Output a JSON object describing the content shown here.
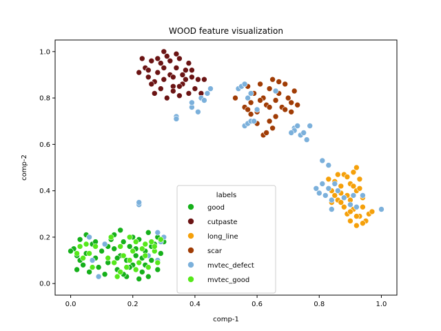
{
  "chart_data": {
    "type": "scatter",
    "title": "WOOD feature visualization",
    "xlabel": "comp-1",
    "ylabel": "comp-2",
    "xlim": [
      -0.05,
      1.05
    ],
    "ylim": [
      -0.05,
      1.05
    ],
    "xticks": [
      "0.0",
      "0.2",
      "0.4",
      "0.6",
      "0.8",
      "1.0"
    ],
    "yticks": [
      "0.0",
      "0.2",
      "0.4",
      "0.6",
      "0.8",
      "1.0"
    ],
    "grid": false,
    "legend": {
      "title": "labels",
      "placement": "lower-center"
    },
    "series": [
      {
        "name": "good",
        "color": "#15b01a",
        "points": [
          [
            0.01,
            0.15
          ],
          [
            0.02,
            0.12
          ],
          [
            0.03,
            0.1
          ],
          [
            0.04,
            0.08
          ],
          [
            0.05,
            0.13
          ],
          [
            0.06,
            0.05
          ],
          [
            0.07,
            0.17
          ],
          [
            0.08,
            0.11
          ],
          [
            0.09,
            0.07
          ],
          [
            0.1,
            0.14
          ],
          [
            0.12,
            0.09
          ],
          [
            0.13,
            0.19
          ],
          [
            0.14,
            0.21
          ],
          [
            0.15,
            0.06
          ],
          [
            0.16,
            0.12
          ],
          [
            0.17,
            0.18
          ],
          [
            0.18,
            0.03
          ],
          [
            0.19,
            0.16
          ],
          [
            0.2,
            0.08
          ],
          [
            0.21,
            0.12
          ],
          [
            0.22,
            0.19
          ],
          [
            0.23,
            0.05
          ],
          [
            0.24,
            0.14
          ],
          [
            0.25,
            0.22
          ],
          [
            0.26,
            0.1
          ],
          [
            0.27,
            0.17
          ],
          [
            0.28,
            0.06
          ],
          [
            0.29,
            0.13
          ],
          [
            0.3,
            0.18
          ],
          [
            0.03,
            0.19
          ],
          [
            0.05,
            0.21
          ],
          [
            0.11,
            0.04
          ],
          [
            0.14,
            0.15
          ],
          [
            0.16,
            0.23
          ],
          [
            0.18,
            0.1
          ],
          [
            0.2,
            0.2
          ],
          [
            0.22,
            0.02
          ],
          [
            0.24,
            0.08
          ],
          [
            0.26,
            0.16
          ],
          [
            0.28,
            0.2
          ],
          [
            0.0,
            0.14
          ],
          [
            0.02,
            0.06
          ],
          [
            0.08,
            0.18
          ],
          [
            0.12,
            0.16
          ],
          [
            0.15,
            0.11
          ],
          [
            0.17,
            0.04
          ],
          [
            0.19,
            0.07
          ],
          [
            0.21,
            0.15
          ],
          [
            0.23,
            0.11
          ],
          [
            0.25,
            0.03
          ]
        ]
      },
      {
        "name": "cutpaste",
        "color": "#6b1414",
        "points": [
          [
            0.24,
            0.93
          ],
          [
            0.25,
            0.89
          ],
          [
            0.26,
            0.96
          ],
          [
            0.27,
            0.87
          ],
          [
            0.28,
            0.91
          ],
          [
            0.29,
            0.95
          ],
          [
            0.3,
            0.88
          ],
          [
            0.31,
            0.98
          ],
          [
            0.32,
            0.9
          ],
          [
            0.33,
            0.85
          ],
          [
            0.34,
            0.93
          ],
          [
            0.35,
            0.97
          ],
          [
            0.36,
            0.86
          ],
          [
            0.37,
            0.92
          ],
          [
            0.38,
            0.95
          ],
          [
            0.39,
            0.89
          ],
          [
            0.4,
            0.84
          ],
          [
            0.41,
            0.88
          ],
          [
            0.27,
            0.82
          ],
          [
            0.29,
            0.84
          ],
          [
            0.31,
            0.8
          ],
          [
            0.33,
            0.83
          ],
          [
            0.35,
            0.81
          ],
          [
            0.36,
            0.9
          ],
          [
            0.26,
            0.86
          ],
          [
            0.3,
            0.93
          ],
          [
            0.32,
            0.96
          ],
          [
            0.34,
            0.99
          ],
          [
            0.37,
            0.88
          ],
          [
            0.39,
            0.92
          ],
          [
            0.23,
            0.97
          ],
          [
            0.25,
            0.92
          ],
          [
            0.28,
            0.97
          ],
          [
            0.3,
            1.0
          ],
          [
            0.33,
            0.89
          ],
          [
            0.35,
            0.85
          ],
          [
            0.38,
            0.82
          ],
          [
            0.42,
            0.82
          ],
          [
            0.43,
            0.88
          ],
          [
            0.22,
            0.91
          ]
        ]
      },
      {
        "name": "long_line",
        "color": "#f5a00a",
        "points": [
          [
            0.84,
            0.4
          ],
          [
            0.85,
            0.44
          ],
          [
            0.86,
            0.36
          ],
          [
            0.87,
            0.42
          ],
          [
            0.88,
            0.47
          ],
          [
            0.89,
            0.38
          ],
          [
            0.9,
            0.43
          ],
          [
            0.91,
            0.48
          ],
          [
            0.92,
            0.4
          ],
          [
            0.93,
            0.45
          ],
          [
            0.94,
            0.37
          ],
          [
            0.86,
            0.47
          ],
          [
            0.88,
            0.33
          ],
          [
            0.9,
            0.36
          ],
          [
            0.92,
            0.5
          ],
          [
            0.84,
            0.35
          ],
          [
            0.87,
            0.39
          ],
          [
            0.89,
            0.46
          ],
          [
            0.91,
            0.42
          ],
          [
            0.93,
            0.41
          ],
          [
            0.89,
            0.3
          ],
          [
            0.9,
            0.27
          ],
          [
            0.91,
            0.32
          ],
          [
            0.92,
            0.25
          ],
          [
            0.93,
            0.29
          ],
          [
            0.94,
            0.33
          ],
          [
            0.95,
            0.27
          ],
          [
            0.96,
            0.3
          ],
          [
            0.97,
            0.31
          ],
          [
            0.92,
            0.29
          ],
          [
            0.94,
            0.26
          ],
          [
            0.9,
            0.31
          ],
          [
            0.83,
            0.45
          ],
          [
            0.85,
            0.38
          ],
          [
            0.87,
            0.35
          ]
        ]
      },
      {
        "name": "scar",
        "color": "#a03c05",
        "points": [
          [
            0.53,
            0.8
          ],
          [
            0.56,
            0.76
          ],
          [
            0.57,
            0.85
          ],
          [
            0.58,
            0.78
          ],
          [
            0.59,
            0.82
          ],
          [
            0.6,
            0.74
          ],
          [
            0.61,
            0.86
          ],
          [
            0.62,
            0.8
          ],
          [
            0.63,
            0.77
          ],
          [
            0.64,
            0.84
          ],
          [
            0.65,
            0.88
          ],
          [
            0.66,
            0.79
          ],
          [
            0.67,
            0.82
          ],
          [
            0.68,
            0.76
          ],
          [
            0.69,
            0.86
          ],
          [
            0.7,
            0.8
          ],
          [
            0.71,
            0.78
          ],
          [
            0.72,
            0.83
          ],
          [
            0.73,
            0.77
          ],
          [
            0.62,
            0.64
          ],
          [
            0.63,
            0.65
          ],
          [
            0.64,
            0.7
          ],
          [
            0.65,
            0.67
          ],
          [
            0.66,
            0.72
          ],
          [
            0.6,
            0.69
          ],
          [
            0.58,
            0.73
          ],
          [
            0.67,
            0.87
          ],
          [
            0.69,
            0.75
          ],
          [
            0.71,
            0.74
          ],
          [
            0.57,
            0.75
          ],
          [
            0.61,
            0.79
          ],
          [
            0.64,
            0.76
          ]
        ]
      },
      {
        "name": "mvtec_defect",
        "color": "#7bb0db",
        "points": [
          [
            0.34,
            0.72
          ],
          [
            0.34,
            0.71
          ],
          [
            0.39,
            0.76
          ],
          [
            0.39,
            0.78
          ],
          [
            0.41,
            0.74
          ],
          [
            0.42,
            0.8
          ],
          [
            0.43,
            0.79
          ],
          [
            0.44,
            0.82
          ],
          [
            0.45,
            0.84
          ],
          [
            0.54,
            0.84
          ],
          [
            0.55,
            0.85
          ],
          [
            0.56,
            0.86
          ],
          [
            0.57,
            0.8
          ],
          [
            0.58,
            0.82
          ],
          [
            0.56,
            0.68
          ],
          [
            0.57,
            0.69
          ],
          [
            0.58,
            0.7
          ],
          [
            0.59,
            0.7
          ],
          [
            0.6,
            0.75
          ],
          [
            0.66,
            0.83
          ],
          [
            0.72,
            0.67
          ],
          [
            0.72,
            0.66
          ],
          [
            0.73,
            0.68
          ],
          [
            0.74,
            0.64
          ],
          [
            0.75,
            0.65
          ],
          [
            0.76,
            0.62
          ],
          [
            0.77,
            0.68
          ],
          [
            0.71,
            0.65
          ],
          [
            0.79,
            0.41
          ],
          [
            0.8,
            0.39
          ],
          [
            0.81,
            0.43
          ],
          [
            0.82,
            0.38
          ],
          [
            0.83,
            0.41
          ],
          [
            0.84,
            0.36
          ],
          [
            0.85,
            0.43
          ],
          [
            0.86,
            0.4
          ],
          [
            0.81,
            0.53
          ],
          [
            0.83,
            0.51
          ],
          [
            0.84,
            0.32
          ],
          [
            0.88,
            0.37
          ],
          [
            0.9,
            0.34
          ],
          [
            0.91,
            0.38
          ],
          [
            0.92,
            0.33
          ],
          [
            0.94,
            0.38
          ],
          [
            1.0,
            0.32
          ],
          [
            0.22,
            0.34
          ],
          [
            0.22,
            0.35
          ],
          [
            0.28,
            0.22
          ],
          [
            0.3,
            0.2
          ],
          [
            0.29,
            0.18
          ],
          [
            0.09,
            0.03
          ],
          [
            0.07,
            0.1
          ],
          [
            0.11,
            0.17
          ],
          [
            0.25,
            0.12
          ],
          [
            0.06,
            0.2
          ],
          [
            0.28,
            0.1
          ]
        ]
      },
      {
        "name": "mvtec_good",
        "color": "#55e81a",
        "points": [
          [
            0.02,
            0.13
          ],
          [
            0.04,
            0.11
          ],
          [
            0.05,
            0.17
          ],
          [
            0.06,
            0.13
          ],
          [
            0.07,
            0.07
          ],
          [
            0.08,
            0.16
          ],
          [
            0.13,
            0.2
          ],
          [
            0.14,
            0.09
          ],
          [
            0.15,
            0.03
          ],
          [
            0.16,
            0.16
          ],
          [
            0.17,
            0.12
          ],
          [
            0.18,
            0.07
          ],
          [
            0.19,
            0.2
          ],
          [
            0.2,
            0.14
          ],
          [
            0.21,
            0.18
          ],
          [
            0.22,
            0.09
          ],
          [
            0.23,
            0.15
          ],
          [
            0.24,
            0.12
          ],
          [
            0.25,
            0.07
          ],
          [
            0.26,
            0.18
          ],
          [
            0.27,
            0.14
          ],
          [
            0.28,
            0.09
          ],
          [
            0.29,
            0.19
          ],
          [
            0.12,
            0.11
          ],
          [
            0.16,
            0.05
          ],
          [
            0.19,
            0.1
          ],
          [
            0.21,
            0.06
          ],
          [
            0.24,
            0.17
          ],
          [
            0.27,
            0.16
          ],
          [
            0.03,
            0.16
          ]
        ]
      }
    ]
  }
}
